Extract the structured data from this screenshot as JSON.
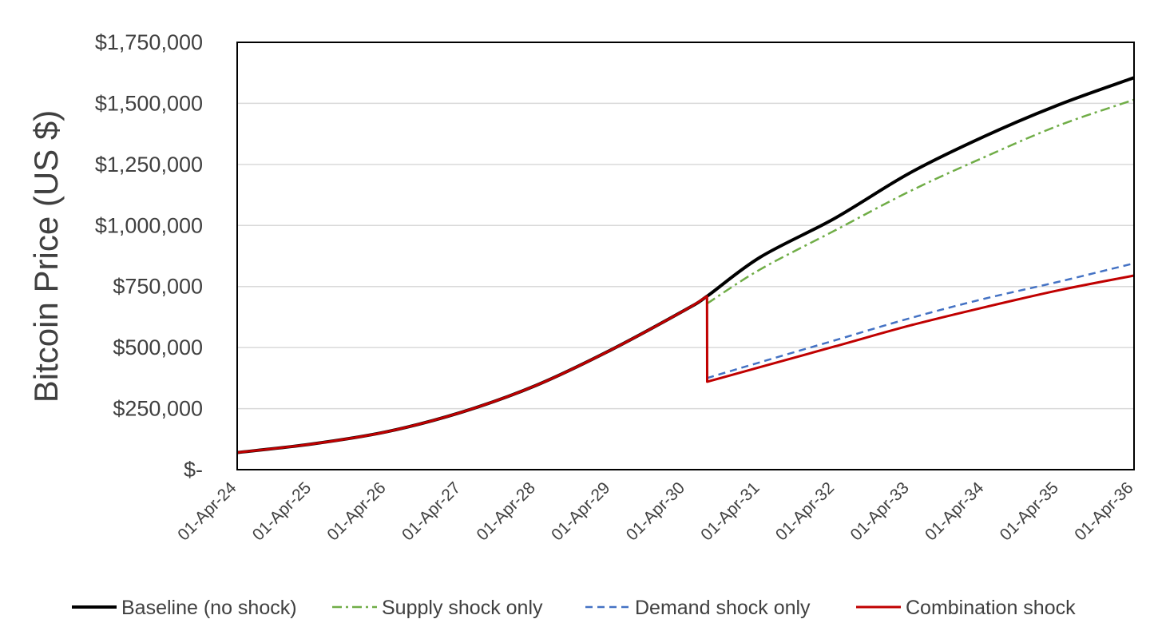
{
  "chart_data": {
    "type": "line",
    "title": "",
    "xlabel": "",
    "ylabel": "Bitcoin Price (US $)",
    "x_tick_labels": [
      "01-Apr-24",
      "01-Apr-25",
      "01-Apr-26",
      "01-Apr-27",
      "01-Apr-28",
      "01-Apr-29",
      "01-Apr-30",
      "01-Apr-31",
      "01-Apr-32",
      "01-Apr-33",
      "01-Apr-34",
      "01-Apr-35",
      "01-Apr-36"
    ],
    "y_tick_labels": [
      "$-",
      "$250,000",
      "$500,000",
      "$750,000",
      "$1,000,000",
      "$1,250,000",
      "$1,500,000",
      "$1,750,000"
    ],
    "y_ticks": [
      0,
      250000,
      500000,
      750000,
      1000000,
      1250000,
      1500000,
      1750000
    ],
    "xlim": [
      "2024-04-01",
      "2036-04-01"
    ],
    "ylim": [
      0,
      1750000
    ],
    "grid": "horizontal",
    "legend_position": "bottom",
    "series": [
      {
        "name": "Baseline (no shock)",
        "color": "#000000",
        "style": "solid",
        "points": [
          [
            "2024-04-01",
            70000
          ],
          [
            "2025-04-01",
            105000
          ],
          [
            "2026-04-01",
            155000
          ],
          [
            "2027-04-01",
            235000
          ],
          [
            "2028-04-01",
            345000
          ],
          [
            "2029-04-01",
            490000
          ],
          [
            "2030-04-01",
            655000
          ],
          [
            "2030-07-15",
            710000
          ],
          [
            "2031-04-01",
            870000
          ],
          [
            "2032-04-01",
            1030000
          ],
          [
            "2033-04-01",
            1215000
          ],
          [
            "2034-04-01",
            1365000
          ],
          [
            "2035-04-01",
            1495000
          ],
          [
            "2036-04-01",
            1605000
          ]
        ]
      },
      {
        "name": "Supply shock only",
        "color": "#70AD47",
        "style": "dashdot",
        "points": [
          [
            "2030-07-15",
            680000
          ],
          [
            "2031-04-01",
            820000
          ],
          [
            "2032-04-01",
            980000
          ],
          [
            "2033-04-01",
            1140000
          ],
          [
            "2034-04-01",
            1280000
          ],
          [
            "2035-04-01",
            1410000
          ],
          [
            "2036-04-01",
            1515000
          ]
        ]
      },
      {
        "name": "Demand shock only",
        "color": "#4472C4",
        "style": "dashed",
        "points": [
          [
            "2030-07-15",
            375000
          ],
          [
            "2031-04-01",
            440000
          ],
          [
            "2032-04-01",
            530000
          ],
          [
            "2033-04-01",
            620000
          ],
          [
            "2034-04-01",
            700000
          ],
          [
            "2035-04-01",
            770000
          ],
          [
            "2036-04-01",
            845000
          ]
        ]
      },
      {
        "name": "Combination shock",
        "color": "#C00000",
        "style": "solid",
        "points": [
          [
            "2024-04-01",
            70000
          ],
          [
            "2025-04-01",
            105000
          ],
          [
            "2026-04-01",
            155000
          ],
          [
            "2027-04-01",
            235000
          ],
          [
            "2028-04-01",
            345000
          ],
          [
            "2029-04-01",
            490000
          ],
          [
            "2030-04-01",
            655000
          ],
          [
            "2030-07-15",
            710000
          ],
          [
            "2030-07-16",
            360000
          ],
          [
            "2031-04-01",
            420000
          ],
          [
            "2032-04-01",
            505000
          ],
          [
            "2033-04-01",
            590000
          ],
          [
            "2034-04-01",
            665000
          ],
          [
            "2035-04-01",
            735000
          ],
          [
            "2036-04-01",
            795000
          ]
        ]
      }
    ]
  }
}
